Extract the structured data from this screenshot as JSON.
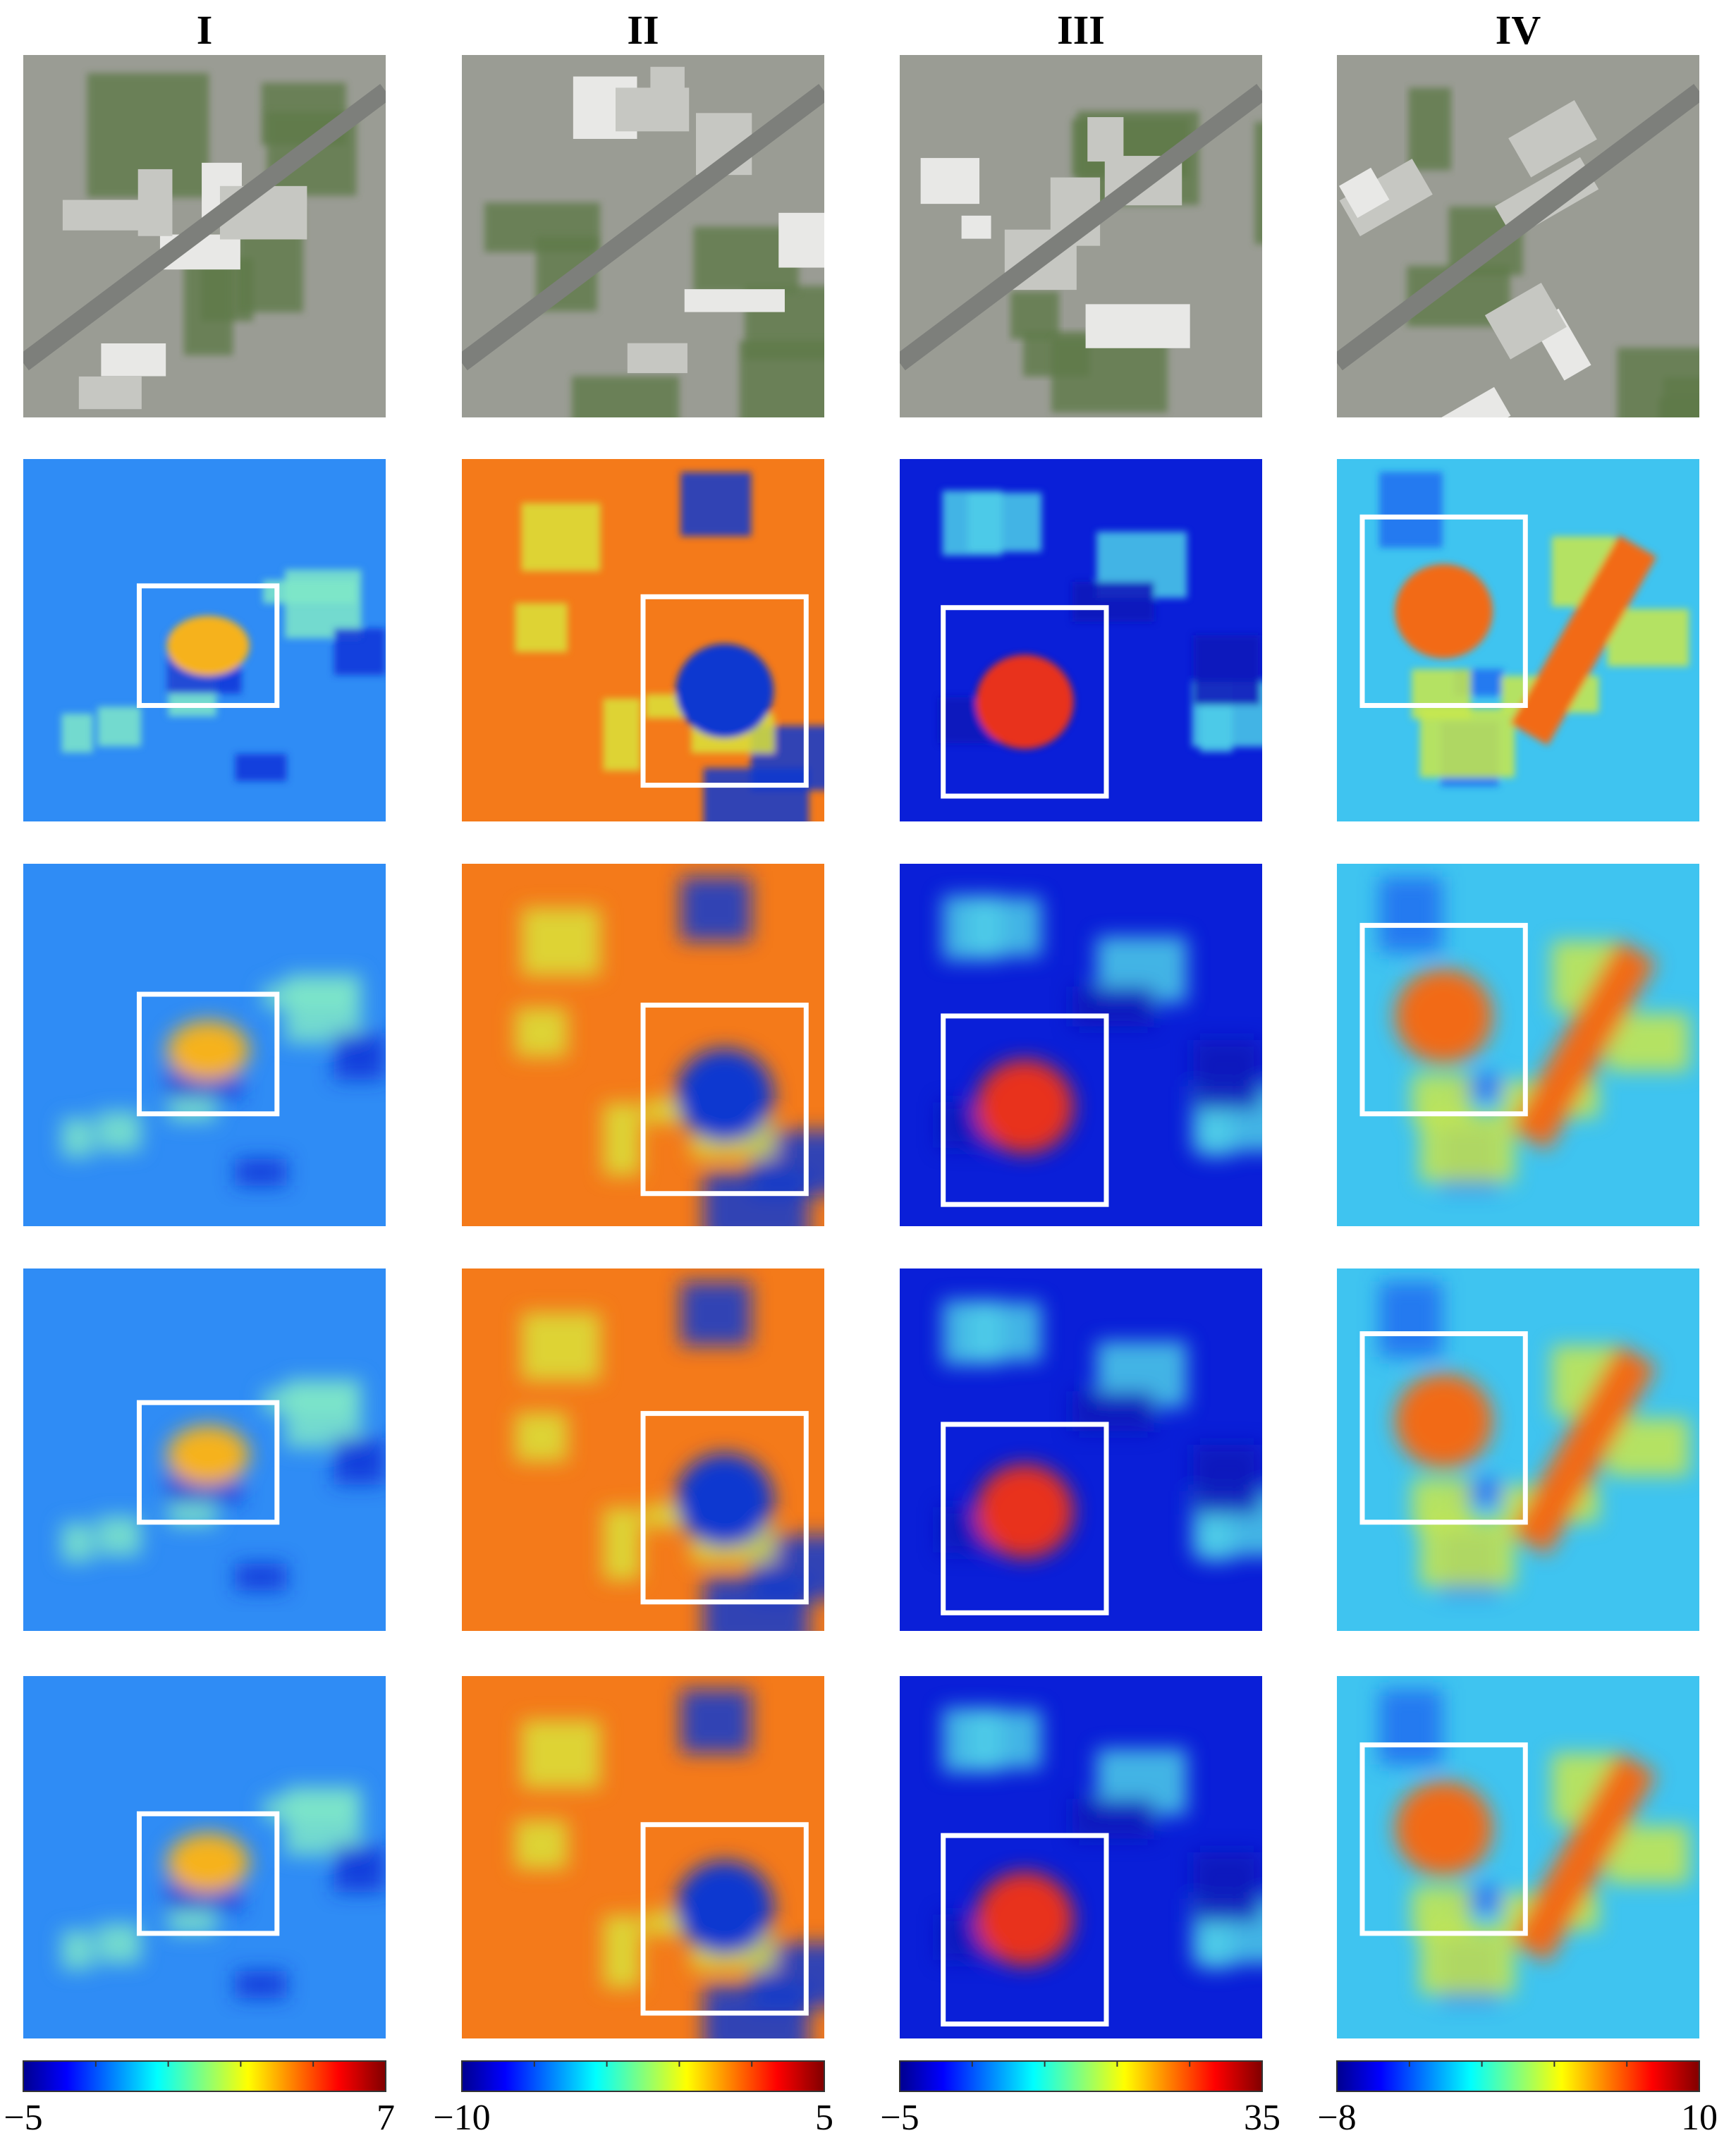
{
  "columns": [
    {
      "label": "I",
      "colorbar": {
        "min": "−5",
        "max": "7"
      }
    },
    {
      "label": "II",
      "colorbar": {
        "min": "−10",
        "max": "5"
      }
    },
    {
      "label": "III",
      "colorbar": {
        "min": "−5",
        "max": "35"
      }
    },
    {
      "label": "IV",
      "colorbar": {
        "min": "−8",
        "max": "10"
      }
    }
  ]
}
